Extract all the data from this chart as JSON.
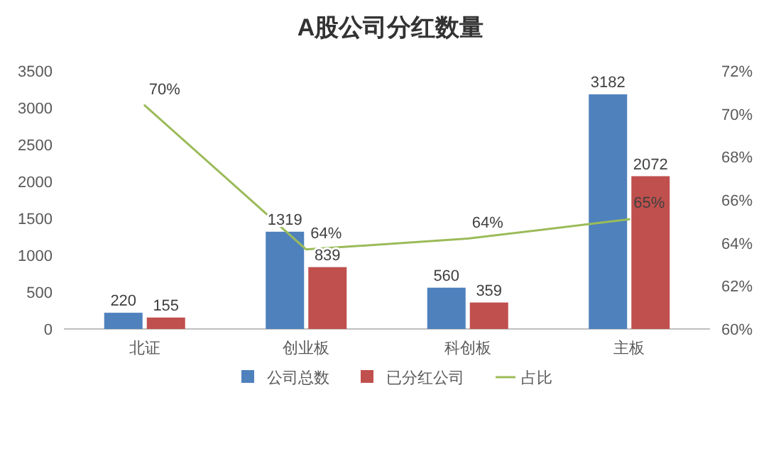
{
  "chart_data": {
    "type": "bar",
    "title": "A股公司分红数量",
    "categories": [
      "北证",
      "创业板",
      "科创板",
      "主板"
    ],
    "series": [
      {
        "name": "公司总数",
        "color": "#4f81bd",
        "values": [
          220,
          1319,
          560,
          3182
        ],
        "value_labels": [
          "220",
          "1319",
          "560",
          "3182"
        ]
      },
      {
        "name": "已分红公司",
        "color": "#c0504d",
        "values": [
          155,
          839,
          359,
          2072
        ],
        "value_labels": [
          "155",
          "839",
          "359",
          "2072"
        ]
      },
      {
        "name": "占比",
        "type": "line",
        "axis": "y2",
        "color": "#9bbb59",
        "values": [
          70.4,
          63.7,
          64.2,
          65.1
        ],
        "value_labels": [
          "70%",
          "64%",
          "64%",
          "65%"
        ]
      }
    ],
    "ylim": [
      0,
      3500
    ],
    "yticks": [
      0,
      500,
      1000,
      1500,
      2000,
      2500,
      3000,
      3500
    ],
    "y2lim": [
      60,
      72
    ],
    "y2ticks": [
      {
        "value": 60,
        "label": "60%"
      },
      {
        "value": 62,
        "label": "62%"
      },
      {
        "value": 64,
        "label": "64%"
      },
      {
        "value": 66,
        "label": "66%"
      },
      {
        "value": 68,
        "label": "68%"
      },
      {
        "value": 70,
        "label": "70%"
      },
      {
        "value": 72,
        "label": "72%"
      }
    ],
    "legend": "bottom",
    "grid": false,
    "marker": "none"
  }
}
